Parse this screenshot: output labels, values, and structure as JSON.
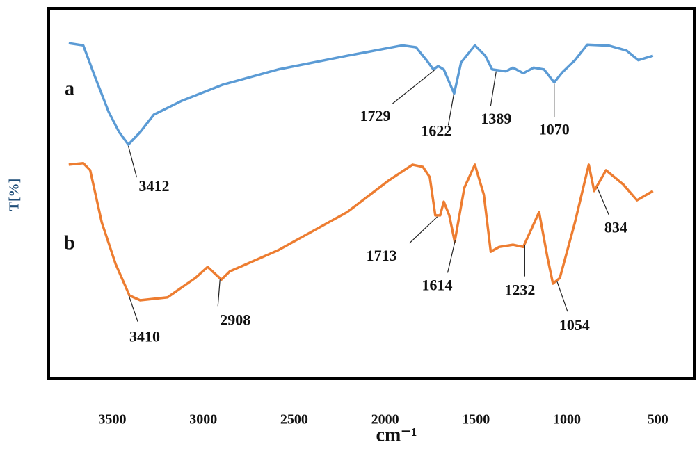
{
  "chart_data": {
    "type": "line",
    "x_label": "cm⁻¹",
    "y_label": "T[%]",
    "xlim": [
      3850,
      300
    ],
    "ylim": [
      0,
      100
    ],
    "xticks": [
      3500,
      3000,
      2500,
      2000,
      1500,
      1000,
      500
    ],
    "grid": false,
    "series": [
      {
        "name": "a",
        "color": "#5b9bd5",
        "x": [
          3740,
          3660,
          3596,
          3520,
          3463,
          3412,
          3347,
          3272,
          3120,
          2892,
          2588,
          2208,
          1905,
          1830,
          1772,
          1734,
          1708,
          1677,
          1620,
          1582,
          1506,
          1449,
          1411,
          1335,
          1297,
          1240,
          1183,
          1126,
          1070,
          1024,
          956,
          888,
          767,
          672,
          607,
          527
        ],
        "values": [
          90.6,
          90,
          81.6,
          72,
          66.6,
          63.2,
          66.6,
          71.3,
          75,
          79.4,
          83.5,
          87.2,
          90,
          89.5,
          86,
          83.5,
          84.4,
          83.5,
          77,
          85.4,
          90,
          87.2,
          83.5,
          83,
          84,
          82.5,
          84,
          83.5,
          80,
          82.8,
          86,
          90.2,
          89.9,
          88.6,
          86,
          87.2
        ],
        "peaks": [
          3412,
          1729,
          1622,
          1389,
          1070
        ]
      },
      {
        "name": "b",
        "color": "#ed7d31",
        "x": [
          3740,
          3660,
          3622,
          3558,
          3482,
          3406,
          3347,
          3196,
          3044,
          2976,
          2930,
          2900,
          2854,
          2588,
          2208,
          1981,
          1849,
          1792,
          1754,
          1724,
          1697,
          1677,
          1647,
          1617,
          1564,
          1506,
          1457,
          1419,
          1373,
          1297,
          1240,
          1153,
          1107,
          1077,
          1039,
          956,
          880,
          850,
          785,
          691,
          615,
          527
        ],
        "values": [
          57.8,
          58.2,
          56.3,
          42.2,
          31,
          22.5,
          21.2,
          22,
          27.2,
          30.2,
          28.1,
          26.8,
          29,
          34.7,
          45,
          53.5,
          57.8,
          57.2,
          54.4,
          44.1,
          44.1,
          47.8,
          44.1,
          37,
          51.6,
          57.8,
          49.7,
          34.3,
          35.6,
          36.2,
          35.6,
          45,
          32.8,
          25.7,
          27.2,
          42.2,
          57.8,
          50.7,
          56.3,
          52.5,
          48.2,
          50.7
        ],
        "peaks": [
          3410,
          2908,
          1713,
          1614,
          1232,
          1054,
          834
        ]
      }
    ]
  }
}
